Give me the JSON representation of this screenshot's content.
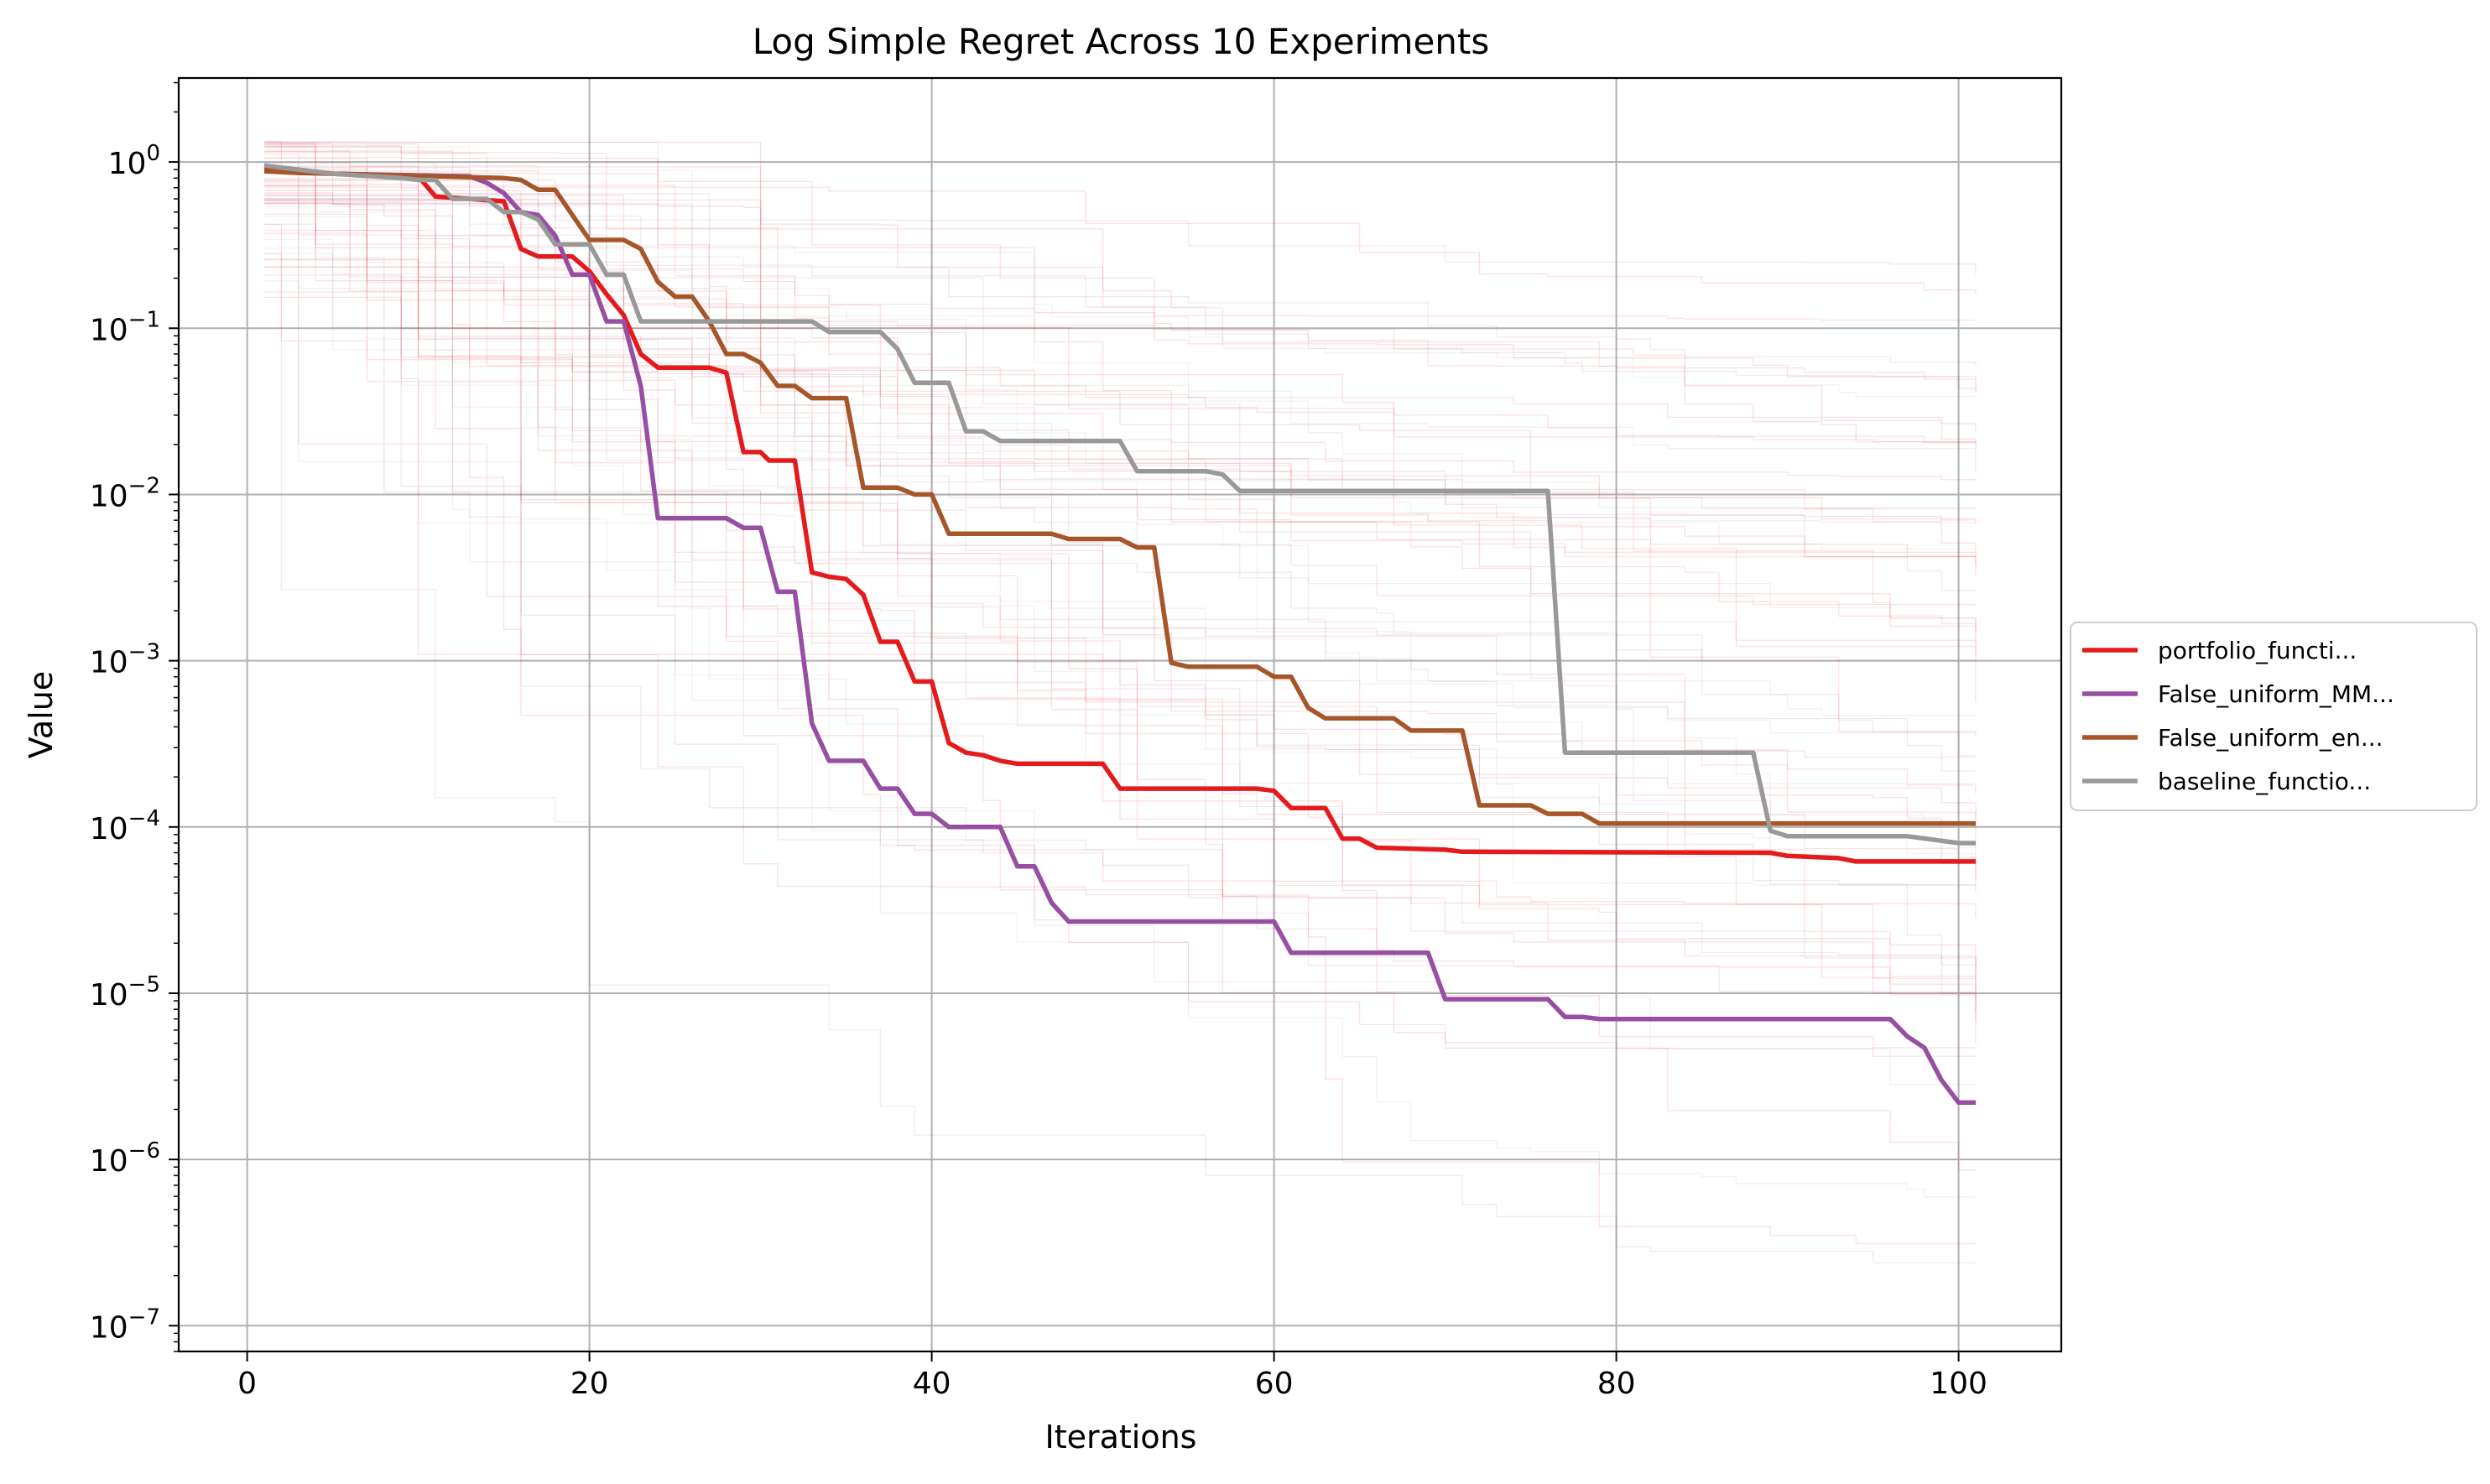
{
  "chart_data": {
    "type": "line",
    "title": "Log Simple Regret Across 10 Experiments",
    "xlabel": "Iterations",
    "ylabel": "Value",
    "xlim": [
      -4,
      106
    ],
    "ylim": [
      7e-08,
      3.2
    ],
    "yscale": "log",
    "grid": true,
    "legend_position": "center-right-outside",
    "x_ticks": [
      0,
      20,
      40,
      60,
      80,
      100
    ],
    "y_ticks": [
      {
        "exp": "0",
        "value": 1
      },
      {
        "exp": "−1",
        "value": 0.1
      },
      {
        "exp": "−2",
        "value": 0.01
      },
      {
        "exp": "−3",
        "value": 0.001
      },
      {
        "exp": "−4",
        "value": 0.0001
      },
      {
        "exp": "−5",
        "value": 1e-05
      },
      {
        "exp": "−6",
        "value": 1e-06
      },
      {
        "exp": "−7",
        "value": 1e-07
      }
    ],
    "y_tick_base": "10",
    "series": [
      {
        "name": "portfolio_functi...",
        "color": "#e41a1c",
        "points": [
          [
            1,
            0.9
          ],
          [
            3,
            0.88
          ],
          [
            5,
            0.85
          ],
          [
            10,
            0.82
          ],
          [
            11,
            0.62
          ],
          [
            13,
            0.6
          ],
          [
            15,
            0.58
          ],
          [
            16,
            0.3
          ],
          [
            17,
            0.27
          ],
          [
            19,
            0.27
          ],
          [
            20,
            0.22
          ],
          [
            21,
            0.16
          ],
          [
            22,
            0.12
          ],
          [
            23,
            0.07
          ],
          [
            24,
            0.058
          ],
          [
            27,
            0.058
          ],
          [
            28,
            0.054
          ],
          [
            29,
            0.018
          ],
          [
            30,
            0.018
          ],
          [
            30.5,
            0.016
          ],
          [
            32,
            0.016
          ],
          [
            33,
            0.0034
          ],
          [
            34,
            0.0032
          ],
          [
            35,
            0.0031
          ],
          [
            36,
            0.0025
          ],
          [
            37,
            0.0013
          ],
          [
            38,
            0.0013
          ],
          [
            39,
            0.00075
          ],
          [
            40,
            0.00075
          ],
          [
            41,
            0.00032
          ],
          [
            42,
            0.00028
          ],
          [
            43,
            0.00027
          ],
          [
            44,
            0.00025
          ],
          [
            45,
            0.00024
          ],
          [
            50,
            0.00024
          ],
          [
            51,
            0.00017
          ],
          [
            59,
            0.00017
          ],
          [
            60,
            0.000165
          ],
          [
            61,
            0.00013
          ],
          [
            63,
            0.00013
          ],
          [
            64,
            8.5e-05
          ],
          [
            65,
            8.5e-05
          ],
          [
            66,
            7.5e-05
          ],
          [
            70,
            7.3e-05
          ],
          [
            71,
            7.1e-05
          ],
          [
            89,
            7e-05
          ],
          [
            90,
            6.7e-05
          ],
          [
            93,
            6.5e-05
          ],
          [
            94,
            6.2e-05
          ],
          [
            101,
            6.2e-05
          ]
        ]
      },
      {
        "name": "False_uniform_MM...",
        "color": "#984ea3",
        "points": [
          [
            1,
            0.95
          ],
          [
            3,
            0.9
          ],
          [
            5,
            0.85
          ],
          [
            13,
            0.82
          ],
          [
            14,
            0.75
          ],
          [
            15,
            0.65
          ],
          [
            16,
            0.5
          ],
          [
            17,
            0.48
          ],
          [
            18,
            0.36
          ],
          [
            19,
            0.21
          ],
          [
            20,
            0.21
          ],
          [
            21,
            0.11
          ],
          [
            22,
            0.11
          ],
          [
            23,
            0.045
          ],
          [
            24,
            0.0072
          ],
          [
            28,
            0.0072
          ],
          [
            29,
            0.0063
          ],
          [
            30,
            0.0063
          ],
          [
            31,
            0.0026
          ],
          [
            32,
            0.0026
          ],
          [
            33,
            0.00042
          ],
          [
            34,
            0.00025
          ],
          [
            36,
            0.00025
          ],
          [
            37,
            0.00017
          ],
          [
            38,
            0.00017
          ],
          [
            39,
            0.00012
          ],
          [
            40,
            0.00012
          ],
          [
            41,
            0.0001
          ],
          [
            44,
            0.0001
          ],
          [
            45,
            5.8e-05
          ],
          [
            46,
            5.8e-05
          ],
          [
            47,
            3.5e-05
          ],
          [
            48,
            2.7e-05
          ],
          [
            60,
            2.7e-05
          ],
          [
            61,
            1.75e-05
          ],
          [
            69,
            1.75e-05
          ],
          [
            70,
            9.2e-06
          ],
          [
            76,
            9.2e-06
          ],
          [
            77,
            7.2e-06
          ],
          [
            78,
            7.2e-06
          ],
          [
            79,
            7e-06
          ],
          [
            96,
            7e-06
          ],
          [
            97,
            5.5e-06
          ],
          [
            98,
            4.7e-06
          ],
          [
            99,
            3e-06
          ],
          [
            100,
            2.2e-06
          ],
          [
            101,
            2.2e-06
          ]
        ]
      },
      {
        "name": "False_uniform_en...",
        "color": "#a65628",
        "points": [
          [
            1,
            0.88
          ],
          [
            3,
            0.86
          ],
          [
            5,
            0.85
          ],
          [
            15,
            0.8
          ],
          [
            16,
            0.78
          ],
          [
            17,
            0.68
          ],
          [
            18,
            0.68
          ],
          [
            19,
            0.48
          ],
          [
            20,
            0.34
          ],
          [
            22,
            0.34
          ],
          [
            23,
            0.3
          ],
          [
            24,
            0.19
          ],
          [
            25,
            0.155
          ],
          [
            26,
            0.155
          ],
          [
            27,
            0.11
          ],
          [
            28,
            0.07
          ],
          [
            29,
            0.07
          ],
          [
            30,
            0.062
          ],
          [
            31,
            0.045
          ],
          [
            32,
            0.045
          ],
          [
            33,
            0.038
          ],
          [
            35,
            0.038
          ],
          [
            36,
            0.011
          ],
          [
            38,
            0.011
          ],
          [
            39,
            0.01
          ],
          [
            40,
            0.01
          ],
          [
            41,
            0.0058
          ],
          [
            47,
            0.0058
          ],
          [
            48,
            0.0054
          ],
          [
            51,
            0.0054
          ],
          [
            52,
            0.0048
          ],
          [
            53,
            0.0048
          ],
          [
            54,
            0.00097
          ],
          [
            55,
            0.00092
          ],
          [
            59,
            0.00092
          ],
          [
            60,
            0.0008
          ],
          [
            61,
            0.0008
          ],
          [
            62,
            0.00052
          ],
          [
            63,
            0.00045
          ],
          [
            67,
            0.00045
          ],
          [
            68,
            0.00038
          ],
          [
            71,
            0.00038
          ],
          [
            72,
            0.000135
          ],
          [
            75,
            0.000135
          ],
          [
            76,
            0.00012
          ],
          [
            78,
            0.00012
          ],
          [
            79,
            0.000105
          ],
          [
            101,
            0.000105
          ]
        ]
      },
      {
        "name": "baseline_functio...",
        "color": "#999999",
        "points": [
          [
            1,
            0.95
          ],
          [
            3,
            0.9
          ],
          [
            5,
            0.85
          ],
          [
            9,
            0.8
          ],
          [
            10,
            0.78
          ],
          [
            11,
            0.78
          ],
          [
            12,
            0.6
          ],
          [
            14,
            0.6
          ],
          [
            15,
            0.5
          ],
          [
            16,
            0.5
          ],
          [
            17,
            0.45
          ],
          [
            18,
            0.32
          ],
          [
            20,
            0.32
          ],
          [
            21,
            0.21
          ],
          [
            22,
            0.21
          ],
          [
            23,
            0.11
          ],
          [
            33,
            0.11
          ],
          [
            34,
            0.095
          ],
          [
            37,
            0.095
          ],
          [
            38,
            0.075
          ],
          [
            39,
            0.047
          ],
          [
            41,
            0.047
          ],
          [
            42,
            0.024
          ],
          [
            43,
            0.024
          ],
          [
            44,
            0.021
          ],
          [
            51,
            0.021
          ],
          [
            52,
            0.0138
          ],
          [
            56,
            0.0138
          ],
          [
            57,
            0.0132
          ],
          [
            58,
            0.0105
          ],
          [
            76,
            0.0105
          ],
          [
            77,
            0.00028
          ],
          [
            88,
            0.00028
          ],
          [
            89,
            9.5e-05
          ],
          [
            90,
            8.8e-05
          ],
          [
            96,
            8.8e-05
          ],
          [
            97,
            8.8e-05
          ],
          [
            100,
            8e-05
          ],
          [
            101,
            8e-05
          ]
        ]
      }
    ]
  }
}
